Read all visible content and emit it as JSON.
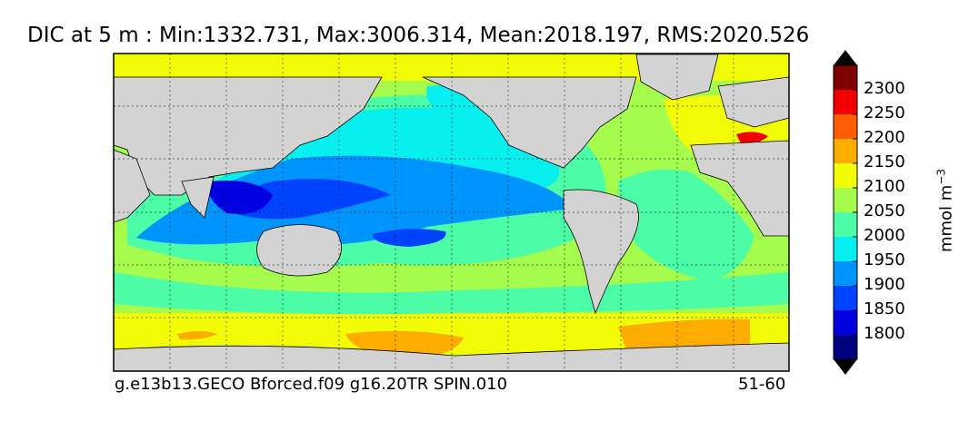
{
  "title": "DIC at 5 m : Min:1332.731, Max:3006.314, Mean:2018.197, RMS:2020.526",
  "footer": {
    "left": "g.e13b13.GECO Bforced.f09 g16.20TR SPIN.010",
    "right": "51-60"
  },
  "colorbar": {
    "units_main": "mmol m",
    "units_exp": "−3",
    "levels": [
      "1800",
      "1850",
      "1900",
      "1950",
      "2000",
      "2050",
      "2100",
      "2150",
      "2200",
      "2250",
      "2300"
    ],
    "colors": [
      "#00007f",
      "#0000e1",
      "#0043ff",
      "#0094ff",
      "#07f0ef",
      "#4dfca6",
      "#a6fc4d",
      "#f1fc06",
      "#ffac00",
      "#ff5e00",
      "#f00000",
      "#7f0000"
    ]
  },
  "chart_data": {
    "type": "heatmap",
    "title": "DIC at 5 m : Min:1332.731, Max:3006.314, Mean:2018.197, RMS:2020.526",
    "variable": "DIC",
    "depth": "5 m",
    "stats": {
      "min": 1332.731,
      "max": 3006.314,
      "mean": 2018.197,
      "rms": 2020.526
    },
    "colorbar_levels": [
      1800,
      1850,
      1900,
      1950,
      2000,
      2050,
      2100,
      2150,
      2200,
      2250,
      2300
    ],
    "colorbar_label": "mmol m−3",
    "colorbar_extend": "both",
    "projection": "global cylindrical, Pacific-centred",
    "land_color": "#d3d3d3",
    "grid": true
  }
}
